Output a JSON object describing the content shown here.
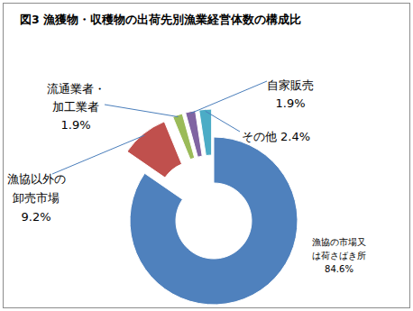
{
  "chart_data": {
    "type": "donut",
    "title": "図3 漁獲物・収穫物の出荷先別漁業経営体数の構成比",
    "categories": [
      "漁協の市場又\nは荷さばき所",
      "漁協以外の\n卸売市場",
      "流通業者・\n加工業者",
      "自家販売",
      "その他"
    ],
    "values": [
      84.6,
      9.2,
      1.9,
      1.9,
      2.4
    ],
    "value_labels": [
      "84.6%",
      "9.2%",
      "1.9%",
      "1.9%",
      "2.4%"
    ],
    "colors": [
      "#4f81bd",
      "#c0504d",
      "#9bbb59",
      "#8064a2",
      "#4bacc6"
    ],
    "data_labels": true
  }
}
